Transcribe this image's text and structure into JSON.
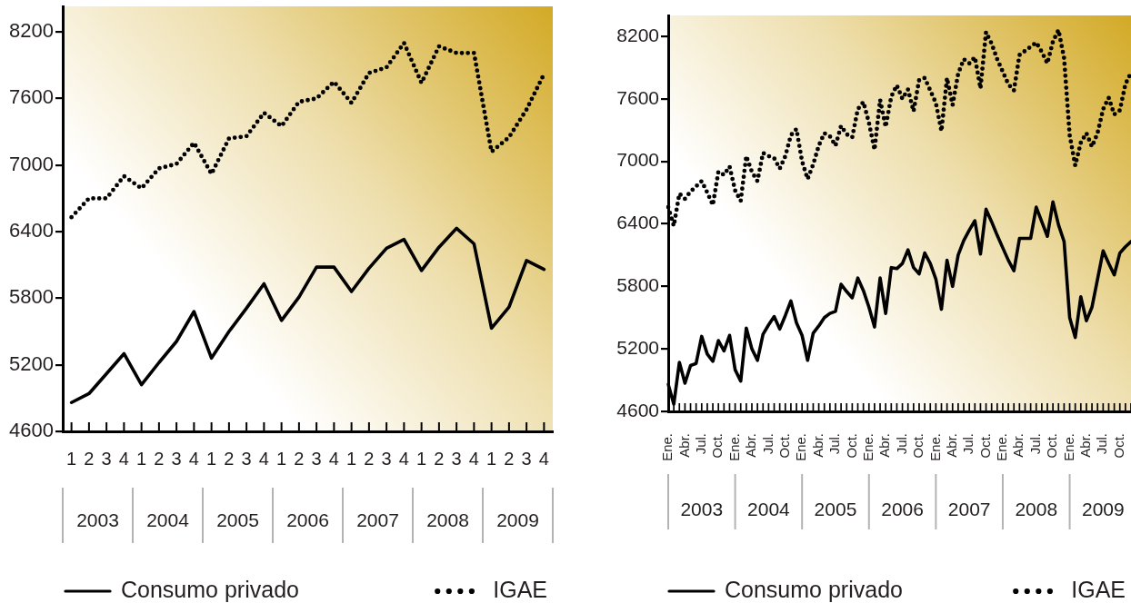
{
  "chart_data": [
    {
      "type": "line",
      "categories": [
        "1",
        "2",
        "3",
        "4",
        "1",
        "2",
        "3",
        "4",
        "1",
        "2",
        "3",
        "4",
        "1",
        "2",
        "3",
        "4",
        "1",
        "2",
        "3",
        "4",
        "1",
        "2",
        "3",
        "4",
        "1",
        "2",
        "3",
        "4"
      ],
      "series": [
        {
          "name": "Consumo privado",
          "color": "#000000",
          "line_style": "solid",
          "values": [
            4860,
            4940,
            5120,
            5300,
            5020,
            5220,
            5410,
            5680,
            5260,
            5500,
            5710,
            5930,
            5600,
            5810,
            6080,
            6080,
            5860,
            6070,
            6250,
            6330,
            6050,
            6260,
            6430,
            6290,
            5530,
            5720,
            6140,
            6060
          ]
        },
        {
          "name": "IGAE",
          "color": "#000000",
          "line_style": "dotted",
          "values": [
            6530,
            6700,
            6700,
            6900,
            6790,
            6970,
            7010,
            7200,
            6920,
            7240,
            7260,
            7470,
            7350,
            7570,
            7600,
            7750,
            7560,
            7830,
            7880,
            8100,
            7740,
            8070,
            8010,
            8010,
            7120,
            7250,
            7500,
            7820
          ]
        }
      ],
      "ylim": [
        4600,
        8430
      ],
      "yticks": [
        4600,
        5200,
        5800,
        6400,
        7000,
        7600,
        8200
      ],
      "annotations": [
        "2003",
        "2004",
        "2005",
        "2006",
        "2007",
        "2008",
        "2009"
      ],
      "legend": "bottom"
    },
    {
      "type": "line",
      "categories": [
        "Ene.",
        null,
        null,
        "Abr.",
        null,
        null,
        "Jul.",
        null,
        null,
        "Oct.",
        null,
        null,
        "Ene.",
        null,
        null,
        "Abr.",
        null,
        null,
        "Jul.",
        null,
        null,
        "Oct.",
        null,
        null,
        "Ene.",
        null,
        null,
        "Abr.",
        null,
        null,
        "Jul.",
        null,
        null,
        "Oct.",
        null,
        null,
        "Ene.",
        null,
        null,
        "Abr.",
        null,
        null,
        "Jul.",
        null,
        null,
        "Oct.",
        null,
        null,
        "Ene.",
        null,
        null,
        "Abr.",
        null,
        null,
        "Jul.",
        null,
        null,
        "Oct.",
        null,
        null,
        "Ene.",
        null,
        null,
        "Abr.",
        null,
        null,
        "Jul.",
        null,
        null,
        "Oct.",
        null,
        null,
        "Ene.",
        null,
        null,
        "Abr.",
        null,
        null,
        "Jul.",
        null,
        null,
        "Oct.",
        null,
        null
      ],
      "series": [
        {
          "name": "Consumo privado",
          "color": "#000000",
          "line_style": "solid",
          "values": [
            4860,
            4670,
            5070,
            4870,
            5040,
            5060,
            5320,
            5150,
            5080,
            5280,
            5180,
            5330,
            5000,
            4890,
            5400,
            5200,
            5090,
            5340,
            5430,
            5510,
            5390,
            5520,
            5660,
            5450,
            5330,
            5090,
            5350,
            5420,
            5500,
            5540,
            5560,
            5820,
            5750,
            5690,
            5880,
            5760,
            5600,
            5410,
            5880,
            5540,
            5980,
            5970,
            6020,
            6150,
            5980,
            5920,
            6120,
            6020,
            5870,
            5580,
            6050,
            5800,
            6100,
            6240,
            6340,
            6430,
            6110,
            6540,
            6420,
            6290,
            6170,
            6050,
            5950,
            6260,
            6260,
            6260,
            6560,
            6420,
            6280,
            6610,
            6390,
            6230,
            5500,
            5310,
            5700,
            5470,
            5600,
            5870,
            6140,
            6020,
            5910,
            6120,
            6180,
            6230
          ]
        },
        {
          "name": "IGAE",
          "color": "#000000",
          "line_style": "dotted",
          "values": [
            6560,
            6380,
            6690,
            6640,
            6710,
            6760,
            6810,
            6700,
            6580,
            6900,
            6870,
            6950,
            6720,
            6620,
            7050,
            6900,
            6810,
            7080,
            7050,
            7030,
            6930,
            7050,
            7250,
            7310,
            7000,
            6830,
            6970,
            7150,
            7270,
            7240,
            7150,
            7340,
            7260,
            7230,
            7500,
            7570,
            7370,
            7110,
            7590,
            7330,
            7620,
            7730,
            7600,
            7690,
            7480,
            7780,
            7800,
            7680,
            7560,
            7290,
            7800,
            7540,
            7840,
            7980,
            7940,
            8000,
            7700,
            8240,
            8130,
            7980,
            7860,
            7740,
            7680,
            8020,
            8060,
            8100,
            8140,
            8050,
            7940,
            8150,
            8260,
            7990,
            7250,
            6960,
            7180,
            7270,
            7140,
            7270,
            7500,
            7610,
            7450,
            7490,
            7740,
            7850
          ]
        }
      ],
      "ylim": [
        4600,
        8400
      ],
      "yticks": [
        4600,
        5200,
        5800,
        6400,
        7000,
        7600,
        8200
      ],
      "annotations": [
        "2003",
        "2004",
        "2005",
        "2006",
        "2007",
        "2008",
        "2009"
      ],
      "legend": "bottom"
    }
  ]
}
